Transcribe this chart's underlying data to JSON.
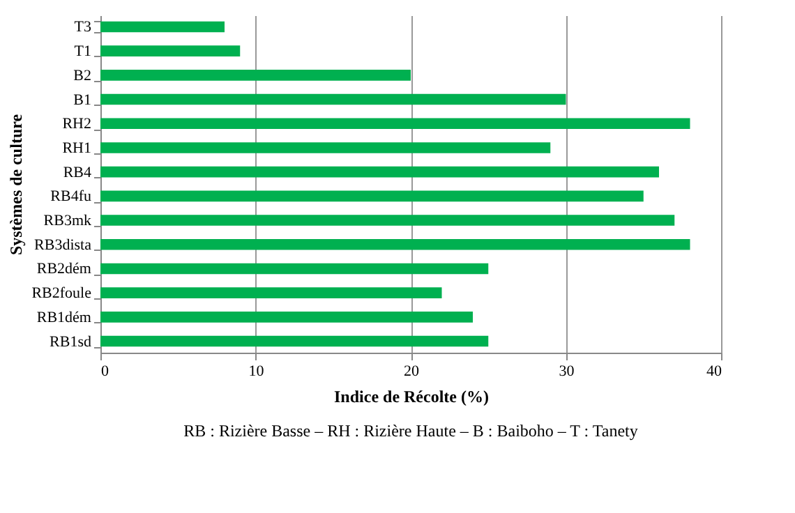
{
  "chart_data": {
    "type": "bar",
    "orientation": "horizontal",
    "categories": [
      "T3",
      "T1",
      "B2",
      "B1",
      "RH2",
      "RH1",
      "RB4",
      "RB4fu",
      "RB3mk",
      "RB3dista",
      "RB2dém",
      "RB2foule",
      "RB1dém",
      "RB1sd"
    ],
    "values": [
      8,
      9,
      20,
      30,
      38,
      29,
      36,
      35,
      37,
      38,
      25,
      22,
      24,
      25
    ],
    "color": "#00b050",
    "xlim": [
      0,
      40
    ],
    "xticks": [
      0,
      10,
      20,
      30,
      40
    ],
    "grid": "x",
    "xlabel": "Indice de Récolte (%)",
    "ylabel": "Systèmes de culture",
    "annotations": [
      "RB : Rizière Basse – RH : Rizière Haute – B : Baiboho – T : Tanety"
    ]
  }
}
